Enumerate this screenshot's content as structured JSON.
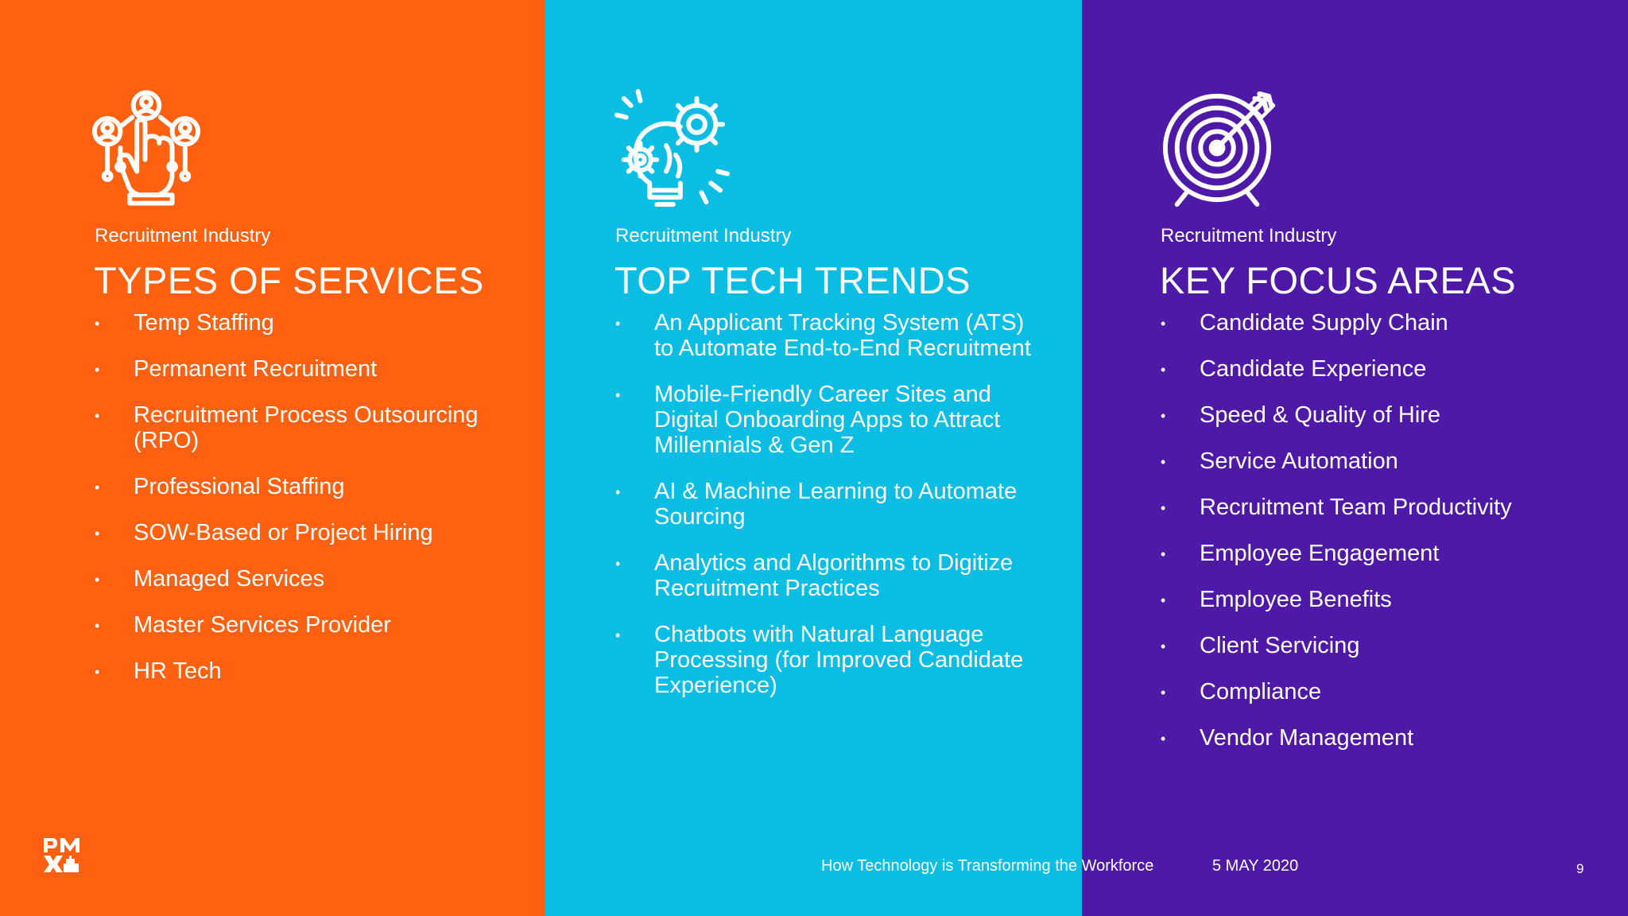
{
  "colors": {
    "orange": "#FF6110",
    "cyan": "#0ABEE3",
    "purple": "#4F19A8"
  },
  "panels": [
    {
      "icon": "people-hand-network-icon",
      "eyebrow": "Recruitment Industry",
      "heading": "TYPES OF SERVICES",
      "items": [
        "Temp Staffing",
        "Permanent Recruitment",
        "Recruitment Process Outsourcing (RPO)",
        "Professional Staffing",
        "SOW-Based or Project Hiring",
        "Managed Services",
        "Master Services Provider",
        "HR Tech"
      ]
    },
    {
      "icon": "lightbulb-gears-icon",
      "eyebrow": "Recruitment Industry",
      "heading": "TOP TECH TRENDS",
      "items": [
        "An Applicant Tracking System (ATS) to Automate End-to-End Recruitment",
        "Mobile-Friendly Career Sites and Digital Onboarding Apps to Attract Millennials & Gen Z",
        "AI & Machine Learning to Automate Sourcing",
        "Analytics and Algorithms to Digitize Recruitment Practices",
        "Chatbots with Natural Language Processing (for Improved Candidate Experience)"
      ]
    },
    {
      "icon": "target-arrow-icon",
      "eyebrow": "Recruitment Industry",
      "heading": "KEY FOCUS AREAS",
      "items": [
        "Candidate Supply Chain",
        "Candidate Experience",
        "Speed & Quality of Hire",
        "Service Automation",
        "Recruitment Team Productivity",
        "Employee Engagement",
        "Employee Benefits",
        "Client Servicing",
        "Compliance",
        "Vendor Management"
      ]
    }
  ],
  "footer": {
    "title": "How Technology is Transforming the Workforce",
    "date": "5 MAY 2020",
    "page": "9"
  }
}
